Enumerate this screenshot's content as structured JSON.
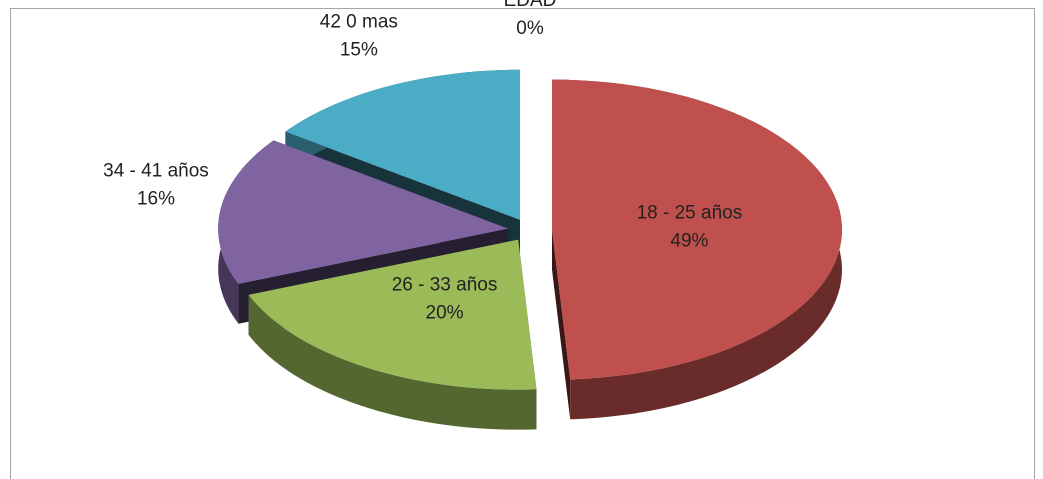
{
  "chart_data": {
    "type": "pie3d",
    "categories": [
      "EDAD",
      "18 - 25 años",
      "26 - 33 años",
      "34 - 41 años",
      "42 0 mas"
    ],
    "values": [
      0,
      49,
      20,
      16,
      15
    ],
    "value_labels": [
      "0%",
      "49%",
      "20%",
      "16%",
      "15%"
    ],
    "colors": [
      "#4f81bd",
      "#c0504d",
      "#9bbb59",
      "#8064a2",
      "#4bacc6"
    ]
  }
}
